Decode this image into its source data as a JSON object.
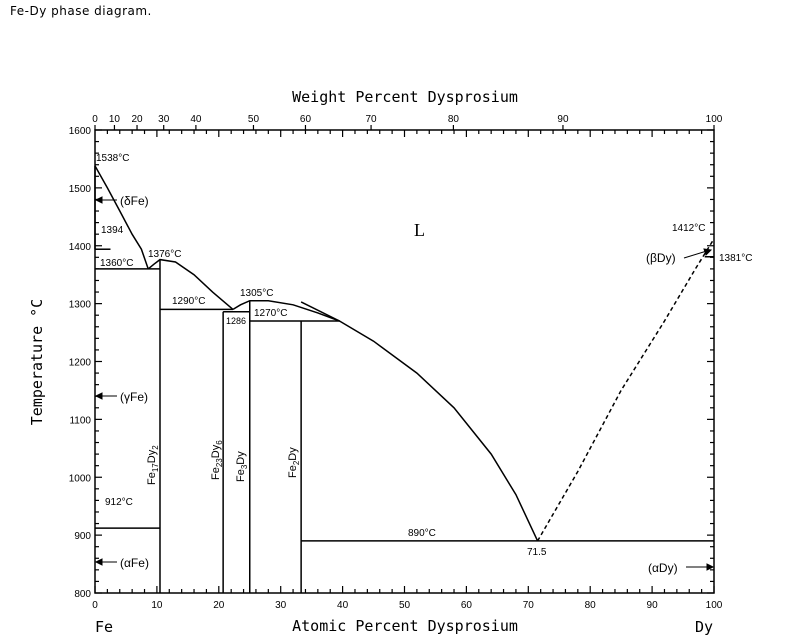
{
  "title": "Fe-Dy phase diagram.",
  "chart_data": {
    "type": "phase-diagram",
    "system": "Fe-Dy",
    "x_bottom": {
      "label": "Atomic Percent Dysprosium",
      "range": [
        0,
        100
      ],
      "ticks": [
        0,
        10,
        20,
        30,
        40,
        50,
        60,
        70,
        80,
        90,
        100
      ],
      "end_labels": {
        "left": "Fe",
        "right": "Dy"
      }
    },
    "x_top": {
      "label": "Weight Percent Dysprosium",
      "ticks": [
        {
          "wt": 0,
          "at": 0
        },
        {
          "wt": 10,
          "at": 3.14
        },
        {
          "wt": 20,
          "at": 6.79
        },
        {
          "wt": 30,
          "at": 11.1
        },
        {
          "wt": 40,
          "at": 16.3
        },
        {
          "wt": 50,
          "at": 25.6
        },
        {
          "wt": 60,
          "at": 34.0
        },
        {
          "wt": 70,
          "at": 44.6
        },
        {
          "wt": 80,
          "at": 57.9
        },
        {
          "wt": 90,
          "at": 75.6
        },
        {
          "wt": 100,
          "at": 100
        }
      ]
    },
    "y": {
      "label": "Temperature °C",
      "range": [
        800,
        1600
      ],
      "ticks": [
        800,
        900,
        1000,
        1100,
        1200,
        1300,
        1400,
        1500,
        1600
      ]
    },
    "region_labels": [
      {
        "id": "liquid",
        "text": "L"
      },
      {
        "id": "delta-fe",
        "text": "(δFe)"
      },
      {
        "id": "gamma-fe",
        "text": "(γFe)"
      },
      {
        "id": "alpha-fe",
        "text": "(αFe)"
      },
      {
        "id": "beta-dy",
        "text": "(βDy)"
      },
      {
        "id": "alpha-dy",
        "text": "(αDy)"
      }
    ],
    "compounds": [
      {
        "main": "Fe",
        "sub1": "17",
        "mid": "Dy",
        "sub2": "2",
        "at": 10.5,
        "range": [
          800,
          1376
        ]
      },
      {
        "main": "Fe",
        "sub1": "23",
        "mid": "Dy",
        "sub2": "6",
        "at": 20.7,
        "range": [
          800,
          1286
        ]
      },
      {
        "main": "Fe",
        "sub1": "3",
        "mid": "Dy",
        "sub2": "",
        "at": 25.0,
        "range": [
          800,
          1305
        ]
      },
      {
        "main": "Fe",
        "sub1": "2",
        "mid": "Dy",
        "sub2": "",
        "at": 33.3,
        "range": [
          800,
          1270
        ]
      }
    ],
    "temperature_labels": [
      {
        "text": "1538°C",
        "value": 1538
      },
      {
        "text": "1394",
        "value": 1394
      },
      {
        "text": "1360°C",
        "value": 1360
      },
      {
        "text": "1376°C",
        "value": 1376
      },
      {
        "text": "1290°C",
        "value": 1290
      },
      {
        "text": "1305°C",
        "value": 1305
      },
      {
        "text": "1286",
        "value": 1286
      },
      {
        "text": "1270°C",
        "value": 1270
      },
      {
        "text": "912°C",
        "value": 912
      },
      {
        "text": "890°C",
        "value": 890
      },
      {
        "text": "1412°C",
        "value": 1412
      },
      {
        "text": "1381°C",
        "value": 1381
      }
    ],
    "eutectic": {
      "composition_label": "71.5",
      "at": 71.5,
      "temperature": 890
    },
    "isotherms": [
      {
        "t": 1394,
        "from": 0,
        "to": 2.5
      },
      {
        "t": 1360,
        "from": 0,
        "to": 10.5
      },
      {
        "t": 1290,
        "from": 10.5,
        "to": 22.3
      },
      {
        "t": 1286,
        "from": 20.7,
        "to": 25.0
      },
      {
        "t": 1270,
        "from": 25.0,
        "to": 39.5
      },
      {
        "t": 912,
        "from": 0,
        "to": 10.5
      },
      {
        "t": 890,
        "from": 33.3,
        "to": 100
      }
    ],
    "liquidus": [
      {
        "segment": "fe-rich",
        "points": [
          [
            0,
            1538
          ],
          [
            2,
            1500
          ],
          [
            4,
            1460
          ],
          [
            6,
            1420
          ],
          [
            7.5,
            1394
          ],
          [
            8.6,
            1360
          ]
        ]
      },
      {
        "segment": "fe17dy2",
        "points": [
          [
            8.6,
            1360
          ],
          [
            9.5,
            1368
          ],
          [
            10.5,
            1376
          ],
          [
            13,
            1372
          ],
          [
            16,
            1350
          ],
          [
            19,
            1320
          ],
          [
            22.3,
            1290
          ]
        ]
      },
      {
        "segment": "fe3dy",
        "points": [
          [
            22.3,
            1290
          ],
          [
            23.5,
            1298
          ],
          [
            25,
            1305
          ],
          [
            28,
            1305
          ],
          [
            32,
            1298
          ],
          [
            36,
            1284
          ],
          [
            39.5,
            1270
          ]
        ]
      },
      {
        "segment": "fe2dy-to-eutectic",
        "points": [
          [
            33.3,
            1303
          ],
          [
            39.5,
            1270
          ],
          [
            45,
            1235
          ],
          [
            52,
            1180
          ],
          [
            58,
            1120
          ],
          [
            64,
            1040
          ],
          [
            68,
            970
          ],
          [
            71.5,
            890
          ]
        ]
      },
      {
        "segment": "dy-rich",
        "dashed": true,
        "points": [
          [
            71.5,
            890
          ],
          [
            78,
            1010
          ],
          [
            85,
            1150
          ],
          [
            92,
            1270
          ],
          [
            97,
            1360
          ],
          [
            100,
            1412
          ]
        ]
      }
    ]
  }
}
